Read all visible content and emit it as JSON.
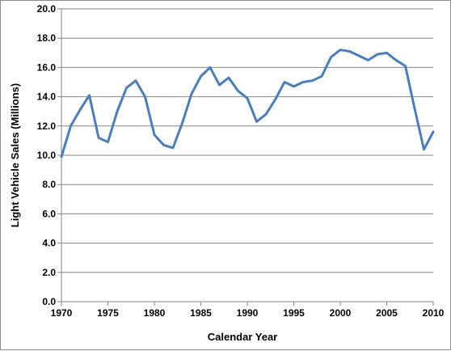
{
  "chart_data": {
    "type": "line",
    "xlabel": "Calendar Year",
    "ylabel": "Light Vehicle Sales (Millions)",
    "xlim": [
      1970,
      2010
    ],
    "ylim": [
      0,
      20
    ],
    "x_ticks": [
      1970,
      1975,
      1980,
      1985,
      1990,
      1995,
      2000,
      2005,
      2010
    ],
    "y_ticks": [
      0,
      2,
      4,
      6,
      8,
      10,
      12,
      14,
      16,
      18,
      20
    ],
    "y_tick_labels": [
      "0.0",
      "2.0",
      "4.0",
      "6.0",
      "8.0",
      "10.0",
      "12.0",
      "14.0",
      "16.0",
      "18.0",
      "20.0"
    ],
    "grid": "horizontal",
    "line_color": "#4a7ebb",
    "series": [
      {
        "x": [
          1970,
          1971,
          1972,
          1973,
          1974,
          1975,
          1976,
          1977,
          1978,
          1979,
          1980,
          1981,
          1982,
          1983,
          1984,
          1985,
          1986,
          1987,
          1988,
          1989,
          1990,
          1991,
          1992,
          1993,
          1994,
          1995,
          1996,
          1997,
          1998,
          1999,
          2000,
          2001,
          2002,
          2003,
          2004,
          2005,
          2006,
          2007,
          2008,
          2009,
          2010
        ],
        "values": [
          9.9,
          12.0,
          13.1,
          14.1,
          11.2,
          10.9,
          13.0,
          14.6,
          15.1,
          14.0,
          11.4,
          10.7,
          10.5,
          12.2,
          14.2,
          15.4,
          16.0,
          14.8,
          15.3,
          14.4,
          13.9,
          12.3,
          12.8,
          13.8,
          15.0,
          14.7,
          15.0,
          15.1,
          15.4,
          16.7,
          17.2,
          17.1,
          16.8,
          16.5,
          16.9,
          17.0,
          16.5,
          16.1,
          13.2,
          10.4,
          11.6
        ]
      }
    ]
  }
}
